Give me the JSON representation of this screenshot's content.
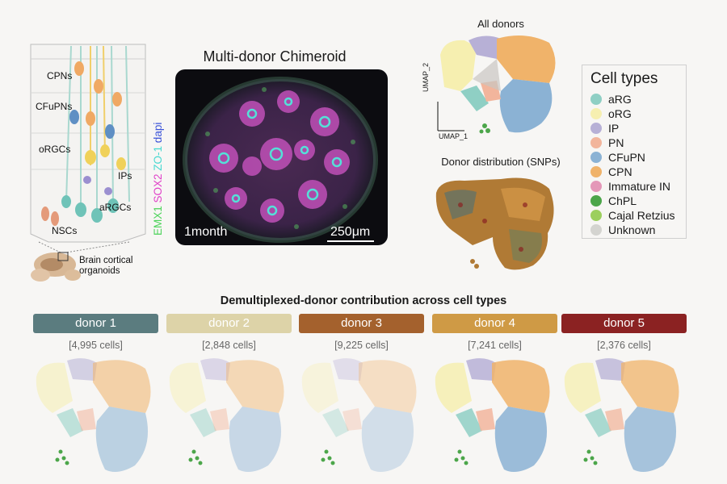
{
  "schematic": {
    "labels": [
      "CPNs",
      "CFuPNs",
      "oRGCs",
      "IPs",
      "aRGCs",
      "NSCs"
    ],
    "organoid_label": "Brain cortical organoids"
  },
  "micrograph": {
    "title": "Multi-donor Chimeroid",
    "stain_parts": [
      {
        "text": "EMX1 ",
        "color": "#4cd35a"
      },
      {
        "text": "SOX2 ",
        "color": "#e040c8"
      },
      {
        "text": "ZO-1 ",
        "color": "#46d8d0"
      },
      {
        "text": "dapi",
        "color": "#3a52d8"
      }
    ],
    "age": "1month",
    "scale": "250μm"
  },
  "umap_all": {
    "title": "All donors",
    "xaxis": "UMAP_1",
    "yaxis": "UMAP_2"
  },
  "umap_snps": {
    "title": "Donor distribution (SNPs)"
  },
  "legend": {
    "title": "Cell types",
    "items": [
      {
        "label": "aRG",
        "color": "#8fcfc4"
      },
      {
        "label": "oRG",
        "color": "#f6efb0"
      },
      {
        "label": "IP",
        "color": "#b7b0d6"
      },
      {
        "label": "PN",
        "color": "#f2b59c"
      },
      {
        "label": "CFuPN",
        "color": "#8bb2d4"
      },
      {
        "label": "CPN",
        "color": "#f0b36a"
      },
      {
        "label": "Immature IN",
        "color": "#e497b8"
      },
      {
        "label": "ChPL",
        "color": "#4ca64a"
      },
      {
        "label": "Cajal Retzius",
        "color": "#9ccf5e"
      },
      {
        "label": "Unknown",
        "color": "#d4d4d0"
      }
    ]
  },
  "bottom": {
    "title": "Demultiplexed-donor contribution across cell types",
    "donors": [
      {
        "label": "donor 1",
        "count": "[4,995 cells]",
        "color": "#5b7c7f"
      },
      {
        "label": "donor 2",
        "count": "[2,848 cells]",
        "color": "#ddd3a8"
      },
      {
        "label": "donor 3",
        "count": "[9,225 cells]",
        "color": "#a4612d"
      },
      {
        "label": "donor 4",
        "count": "[7,241 cells]",
        "color": "#cf9a45"
      },
      {
        "label": "donor 5",
        "count": "[2,376 cells]",
        "color": "#8b2222"
      }
    ]
  }
}
